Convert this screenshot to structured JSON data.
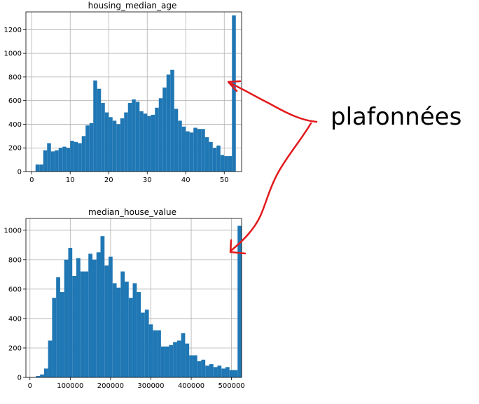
{
  "chart_data": [
    {
      "type": "bar",
      "title": "housing_median_age",
      "xlabel": "",
      "ylabel": "",
      "bin_width": 1,
      "x_start": 1,
      "xlim": [
        -1.5,
        54.5
      ],
      "ylim": [
        0,
        1350
      ],
      "xticks": [
        0,
        10,
        20,
        30,
        40,
        50
      ],
      "yticks": [
        0,
        200,
        400,
        600,
        800,
        1000,
        1200
      ],
      "grid": true,
      "color": "#1f77b4",
      "values": [
        60,
        60,
        180,
        240,
        170,
        180,
        200,
        210,
        200,
        260,
        250,
        240,
        300,
        390,
        410,
        770,
        700,
        580,
        500,
        460,
        430,
        400,
        450,
        500,
        580,
        610,
        590,
        510,
        490,
        470,
        480,
        540,
        620,
        710,
        820,
        860,
        530,
        430,
        380,
        340,
        330,
        370,
        360,
        360,
        290,
        250,
        200,
        220,
        140,
        130,
        130,
        1320
      ]
    },
    {
      "type": "bar",
      "title": "median_house_value",
      "xlabel": "",
      "ylabel": "",
      "bin_width": 10000,
      "x_start": 15000,
      "xlim": [
        -10000,
        525000
      ],
      "ylim": [
        0,
        1080
      ],
      "xticks": [
        0,
        100000,
        200000,
        300000,
        400000,
        500000
      ],
      "yticks": [
        0,
        200,
        400,
        600,
        800,
        1000
      ],
      "grid": true,
      "color": "#1f77b4",
      "values": [
        10,
        20,
        60,
        250,
        540,
        680,
        580,
        800,
        880,
        690,
        810,
        720,
        720,
        840,
        800,
        850,
        960,
        760,
        820,
        640,
        610,
        720,
        650,
        540,
        640,
        580,
        440,
        460,
        360,
        320,
        320,
        210,
        210,
        220,
        240,
        250,
        300,
        230,
        150,
        150,
        110,
        120,
        80,
        90,
        70,
        80,
        60,
        70,
        50,
        50,
        1030
      ]
    }
  ],
  "annotation": {
    "label": "plafonnées",
    "arrow_color": "#e31a1c"
  }
}
